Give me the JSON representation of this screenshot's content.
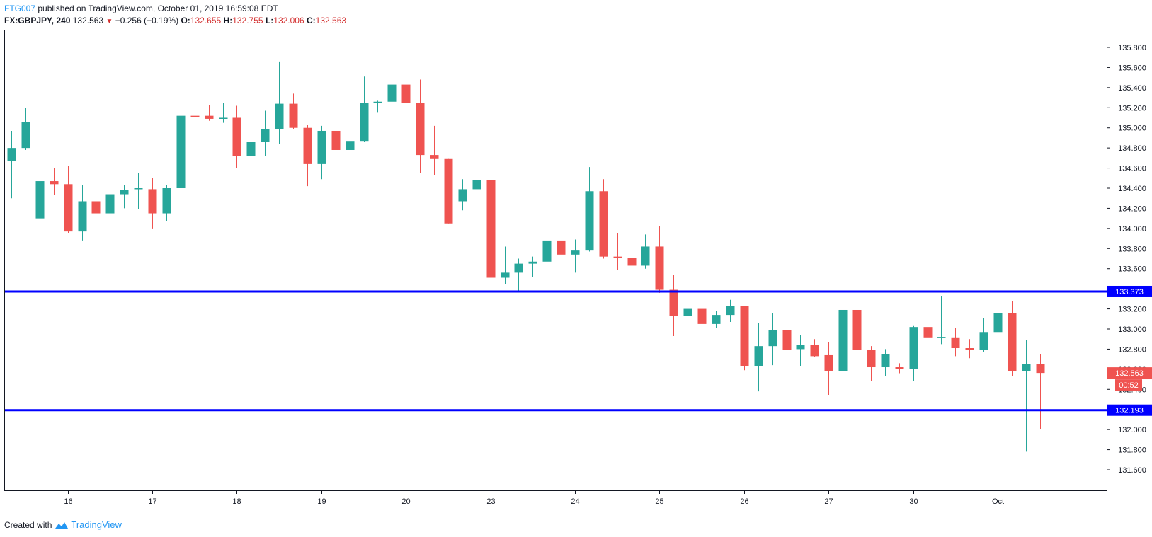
{
  "header": {
    "user": "FTG007",
    "published": "published on TradingView.com, October 01, 2019 16:59:08 EDT",
    "symbol": "FX:GBPJPY, 240",
    "last": "132.563",
    "change_arrow": "▼",
    "change": "−0.256 (−0.19%)",
    "o_label": "O:",
    "o_value": "132.655",
    "h_label": "H:",
    "h_value": "132.755",
    "l_label": "L:",
    "l_value": "132.006",
    "c_label": "C:",
    "c_value": "132.563"
  },
  "footer": {
    "created_with": "Created with",
    "brand": "TradingView"
  },
  "colors": {
    "up": "#26a69a",
    "down": "#ef5350",
    "hline": "#0000ff",
    "axis": "#131722",
    "price_tag": "#ef5350"
  },
  "chart_data": {
    "type": "candlestick",
    "symbol": "FX:GBPJPY",
    "interval": "240",
    "ylim": [
      131.55,
      135.9
    ],
    "y_ticks": [
      131.6,
      131.8,
      132.0,
      132.2,
      132.4,
      132.6,
      132.8,
      133.0,
      133.2,
      133.4,
      133.6,
      133.8,
      134.0,
      134.2,
      134.4,
      134.6,
      134.8,
      135.0,
      135.2,
      135.4,
      135.6,
      135.8
    ],
    "y_tick_labels": [
      "131.600",
      "131.800",
      "132.000",
      "132.200",
      "132.400",
      "132.600",
      "132.800",
      "133.000",
      "133.200",
      "133.400",
      "133.600",
      "133.800",
      "134.000",
      "134.200",
      "134.400",
      "134.600",
      "134.800",
      "135.000",
      "135.200",
      "135.400",
      "135.600",
      "135.800"
    ],
    "x_tick_labels": [
      {
        "label": "16",
        "index": 4
      },
      {
        "label": "17",
        "index": 10
      },
      {
        "label": "18",
        "index": 16
      },
      {
        "label": "19",
        "index": 22
      },
      {
        "label": "20",
        "index": 28
      },
      {
        "label": "23",
        "index": 34
      },
      {
        "label": "24",
        "index": 40
      },
      {
        "label": "25",
        "index": 46
      },
      {
        "label": "26",
        "index": 52
      },
      {
        "label": "27",
        "index": 58
      },
      {
        "label": "30",
        "index": 64
      },
      {
        "label": "Oct",
        "index": 70
      }
    ],
    "candles": [
      {
        "o": 134.67,
        "h": 134.97,
        "l": 134.3,
        "c": 134.8
      },
      {
        "o": 134.8,
        "h": 135.2,
        "l": 134.78,
        "c": 135.06
      },
      {
        "o": 134.1,
        "h": 134.87,
        "l": 134.1,
        "c": 134.47
      },
      {
        "o": 134.47,
        "h": 134.6,
        "l": 134.33,
        "c": 134.44
      },
      {
        "o": 134.44,
        "h": 134.62,
        "l": 133.95,
        "c": 133.97
      },
      {
        "o": 133.97,
        "h": 134.43,
        "l": 133.88,
        "c": 134.27
      },
      {
        "o": 134.27,
        "h": 134.37,
        "l": 133.89,
        "c": 134.15
      },
      {
        "o": 134.15,
        "h": 134.42,
        "l": 134.09,
        "c": 134.34
      },
      {
        "o": 134.34,
        "h": 134.43,
        "l": 134.2,
        "c": 134.38
      },
      {
        "o": 134.39,
        "h": 134.55,
        "l": 134.19,
        "c": 134.4
      },
      {
        "o": 134.39,
        "h": 134.5,
        "l": 134.0,
        "c": 134.15
      },
      {
        "o": 134.15,
        "h": 134.43,
        "l": 134.07,
        "c": 134.4
      },
      {
        "o": 134.4,
        "h": 135.19,
        "l": 134.37,
        "c": 135.12
      },
      {
        "o": 135.12,
        "h": 135.43,
        "l": 135.1,
        "c": 135.11
      },
      {
        "o": 135.12,
        "h": 135.23,
        "l": 135.07,
        "c": 135.09
      },
      {
        "o": 135.1,
        "h": 135.25,
        "l": 135.05,
        "c": 135.1
      },
      {
        "o": 135.1,
        "h": 135.22,
        "l": 134.6,
        "c": 134.72
      },
      {
        "o": 134.72,
        "h": 134.94,
        "l": 134.6,
        "c": 134.86
      },
      {
        "o": 134.86,
        "h": 135.17,
        "l": 134.72,
        "c": 134.99
      },
      {
        "o": 134.99,
        "h": 135.66,
        "l": 134.84,
        "c": 135.24
      },
      {
        "o": 135.24,
        "h": 135.34,
        "l": 134.99,
        "c": 135.0
      },
      {
        "o": 135.0,
        "h": 135.03,
        "l": 134.42,
        "c": 134.64
      },
      {
        "o": 134.64,
        "h": 135.02,
        "l": 134.49,
        "c": 134.97
      },
      {
        "o": 134.97,
        "h": 134.98,
        "l": 134.27,
        "c": 134.78
      },
      {
        "o": 134.78,
        "h": 134.97,
        "l": 134.72,
        "c": 134.87
      },
      {
        "o": 134.87,
        "h": 135.51,
        "l": 134.86,
        "c": 135.25
      },
      {
        "o": 135.25,
        "h": 135.27,
        "l": 135.15,
        "c": 135.26
      },
      {
        "o": 135.26,
        "h": 135.46,
        "l": 135.21,
        "c": 135.43
      },
      {
        "o": 135.43,
        "h": 135.75,
        "l": 135.23,
        "c": 135.25
      },
      {
        "o": 135.25,
        "h": 135.48,
        "l": 134.55,
        "c": 134.73
      },
      {
        "o": 134.73,
        "h": 135.02,
        "l": 134.53,
        "c": 134.69
      },
      {
        "o": 134.69,
        "h": 134.69,
        "l": 134.05,
        "c": 134.05
      },
      {
        "o": 134.27,
        "h": 134.49,
        "l": 134.18,
        "c": 134.39
      },
      {
        "o": 134.39,
        "h": 134.55,
        "l": 134.36,
        "c": 134.48
      },
      {
        "o": 134.48,
        "h": 134.49,
        "l": 133.36,
        "c": 133.51
      },
      {
        "o": 133.51,
        "h": 133.82,
        "l": 133.45,
        "c": 133.56
      },
      {
        "o": 133.56,
        "h": 133.7,
        "l": 133.37,
        "c": 133.65
      },
      {
        "o": 133.65,
        "h": 133.72,
        "l": 133.52,
        "c": 133.67
      },
      {
        "o": 133.67,
        "h": 133.88,
        "l": 133.58,
        "c": 133.88
      },
      {
        "o": 133.88,
        "h": 133.89,
        "l": 133.59,
        "c": 133.74
      },
      {
        "o": 133.74,
        "h": 133.89,
        "l": 133.56,
        "c": 133.78
      },
      {
        "o": 133.78,
        "h": 134.61,
        "l": 133.77,
        "c": 134.37
      },
      {
        "o": 134.37,
        "h": 134.49,
        "l": 133.7,
        "c": 133.72
      },
      {
        "o": 133.72,
        "h": 133.95,
        "l": 133.59,
        "c": 133.71
      },
      {
        "o": 133.71,
        "h": 133.86,
        "l": 133.52,
        "c": 133.63
      },
      {
        "o": 133.63,
        "h": 133.94,
        "l": 133.6,
        "c": 133.82
      },
      {
        "o": 133.82,
        "h": 134.02,
        "l": 133.36,
        "c": 133.39
      },
      {
        "o": 133.39,
        "h": 133.54,
        "l": 132.93,
        "c": 133.13
      },
      {
        "o": 133.13,
        "h": 133.4,
        "l": 132.84,
        "c": 133.2
      },
      {
        "o": 133.2,
        "h": 133.26,
        "l": 133.04,
        "c": 133.05
      },
      {
        "o": 133.05,
        "h": 133.18,
        "l": 133.01,
        "c": 133.14
      },
      {
        "o": 133.14,
        "h": 133.29,
        "l": 133.07,
        "c": 133.23
      },
      {
        "o": 133.23,
        "h": 133.23,
        "l": 132.59,
        "c": 132.63
      },
      {
        "o": 132.63,
        "h": 133.06,
        "l": 132.38,
        "c": 132.83
      },
      {
        "o": 132.83,
        "h": 133.16,
        "l": 132.64,
        "c": 132.99
      },
      {
        "o": 132.99,
        "h": 133.13,
        "l": 132.77,
        "c": 132.79
      },
      {
        "o": 132.8,
        "h": 132.94,
        "l": 132.63,
        "c": 132.84
      },
      {
        "o": 132.84,
        "h": 132.9,
        "l": 132.72,
        "c": 132.73
      },
      {
        "o": 132.74,
        "h": 132.87,
        "l": 132.34,
        "c": 132.58
      },
      {
        "o": 132.58,
        "h": 133.24,
        "l": 132.48,
        "c": 133.19
      },
      {
        "o": 133.19,
        "h": 133.28,
        "l": 132.73,
        "c": 132.79
      },
      {
        "o": 132.79,
        "h": 132.83,
        "l": 132.48,
        "c": 132.62
      },
      {
        "o": 132.62,
        "h": 132.8,
        "l": 132.53,
        "c": 132.75
      },
      {
        "o": 132.62,
        "h": 132.66,
        "l": 132.56,
        "c": 132.6
      },
      {
        "o": 132.6,
        "h": 133.03,
        "l": 132.48,
        "c": 133.02
      },
      {
        "o": 133.02,
        "h": 133.09,
        "l": 132.69,
        "c": 132.91
      },
      {
        "o": 132.91,
        "h": 133.33,
        "l": 132.85,
        "c": 132.92
      },
      {
        "o": 132.91,
        "h": 133.01,
        "l": 132.73,
        "c": 132.81
      },
      {
        "o": 132.81,
        "h": 132.9,
        "l": 132.71,
        "c": 132.79
      },
      {
        "o": 132.79,
        "h": 133.11,
        "l": 132.77,
        "c": 132.97
      },
      {
        "o": 132.97,
        "h": 133.35,
        "l": 132.88,
        "c": 133.16
      },
      {
        "o": 133.16,
        "h": 133.28,
        "l": 132.53,
        "c": 132.58
      },
      {
        "o": 132.58,
        "h": 132.89,
        "l": 131.78,
        "c": 132.65
      },
      {
        "o": 132.65,
        "h": 132.75,
        "l": 132.006,
        "c": 132.563
      }
    ],
    "horizontal_lines": [
      {
        "value": 133.373,
        "label": "133.373"
      },
      {
        "value": 132.193,
        "label": "132.193"
      }
    ],
    "last_price": {
      "value": 132.563,
      "label": "132.563",
      "countdown": "00:52"
    }
  }
}
